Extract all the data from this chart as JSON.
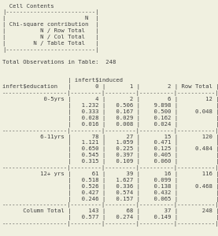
{
  "bg_color": "#f0f0e0",
  "font_color": "#404040",
  "font_size": 5.2,
  "lines": [
    "  Cell Contents",
    "|--------------------------|",
    "|                       N  |",
    "| Chi-square contribution  |",
    "|          N / Row Total   |",
    "|          N / Col Total   |",
    "|        N / Table Total   |",
    "|--------------------------|",
    "",
    "Total Observations in Table:  248",
    "",
    "",
    "                   | infert$induced",
    "infert$education   |       0 |       1 |        2 | Row Total |",
    "-------------------|---------|---------|----------|-----------|",
    "            0-5yrs |       4 |       2 |        6 |        12 |",
    "                   |   1.232 |   0.506 |    9.898 |           |",
    "                   |   0.333 |   0.167 |    0.500 |     0.048 |",
    "                   |   0.028 |   0.029 |    0.162 |           |",
    "                   |   0.016 |   0.008 |    0.024 |           |",
    "-------------------|---------|---------|----------|-----------|",
    "           6-11yrs |      78 |      27 |       15 |       120 |",
    "                   |   1.121 |   1.059 |    0.471 |           |",
    "                   |   0.650 |   0.225 |    0.125 |     0.484 |",
    "                   |   0.545 |   0.397 |    0.405 |           |",
    "                   |   0.315 |   0.109 |    0.060 |           |",
    "-------------------|---------|---------|----------|-----------|",
    "           12+ yrs |      61 |      39 |       16 |       116 |",
    "                   |   0.518 |   1.627 |    0.099 |           |",
    "                   |   0.526 |   0.336 |    0.138 |     0.468 |",
    "                   |   0.427 |   0.574 |    0.432 |           |",
    "                   |   0.246 |   0.157 |    0.065 |           |",
    "-------------------|---------|---------|----------|-----------|",
    "      Column Total |     143 |      68 |       37 |       248 |",
    "                   |   0.577 |   0.274 |    0.149 |           |",
    "-------------------|---------|---------|----------|-----------|"
  ]
}
